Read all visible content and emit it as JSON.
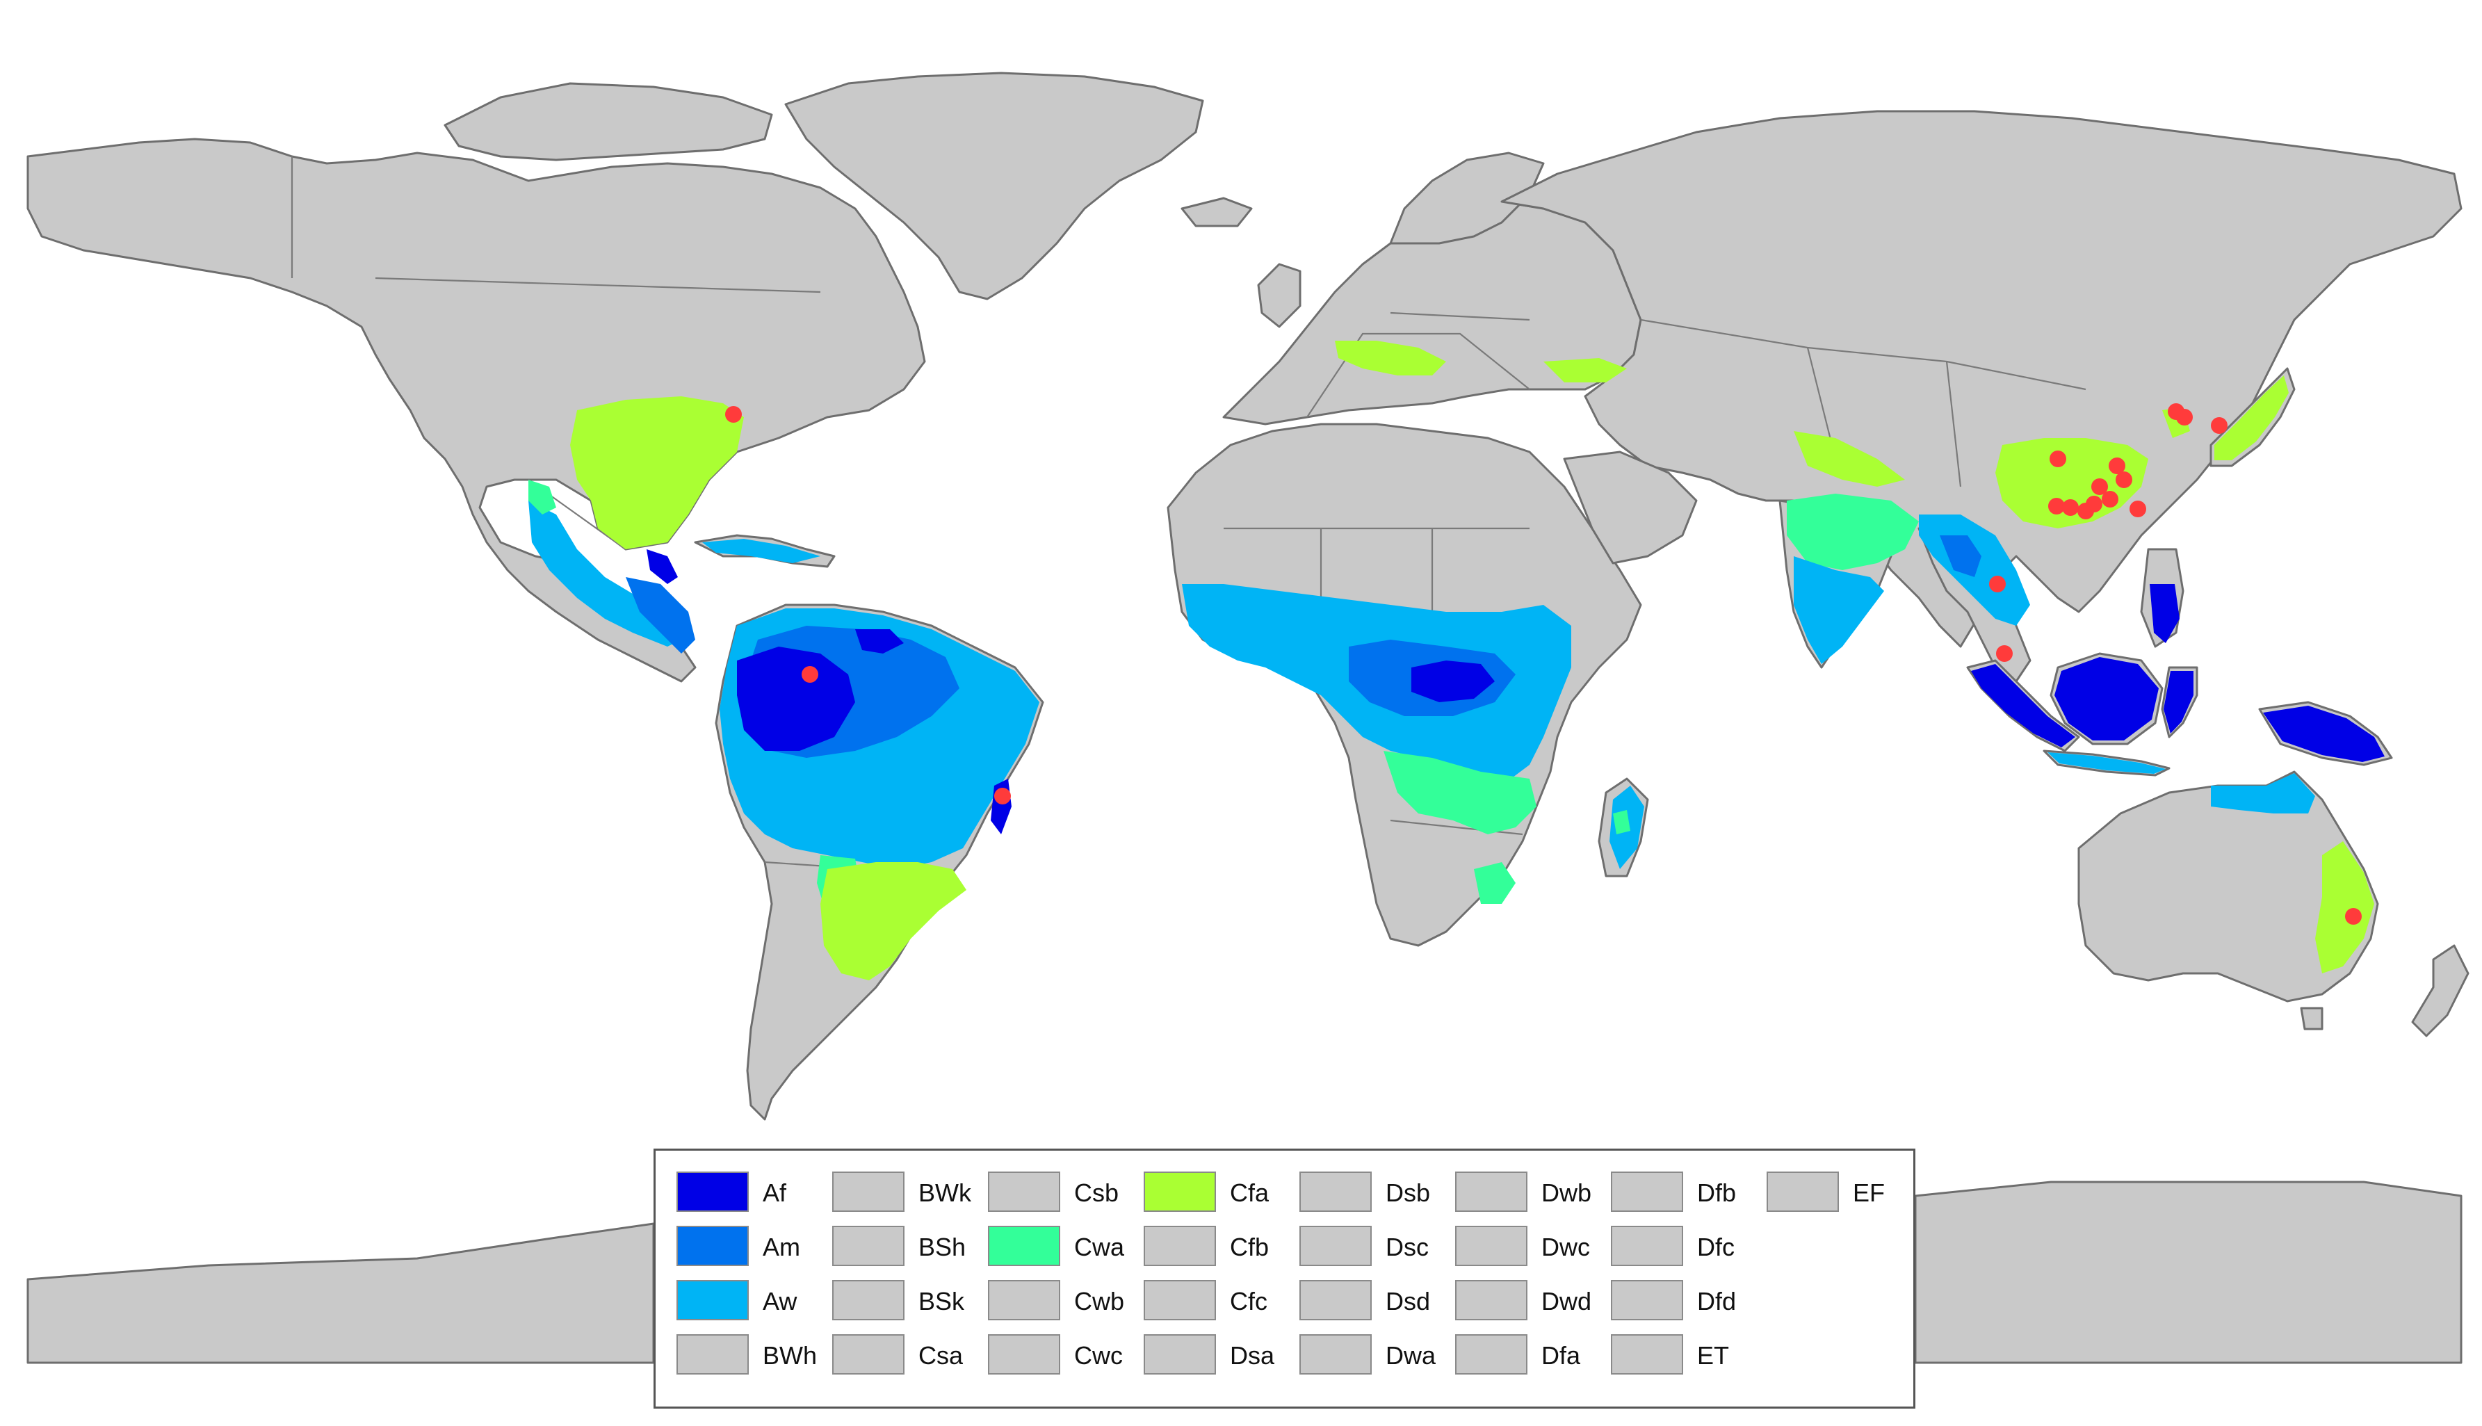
{
  "map": {
    "land_color": "#c9c9c9",
    "border_color": "#6e6e6e",
    "ocean_color": "#ffffff",
    "site_marker_color": "#ff3b3b"
  },
  "legend": {
    "columns": [
      [
        {
          "code": "Af",
          "color": "#0000e6"
        },
        {
          "code": "Am",
          "color": "#0072ee"
        },
        {
          "code": "Aw",
          "color": "#00b4f5"
        },
        {
          "code": "BWh",
          "color": "#c9c9c9"
        }
      ],
      [
        {
          "code": "BWk",
          "color": "#c9c9c9"
        },
        {
          "code": "BSh",
          "color": "#c9c9c9"
        },
        {
          "code": "BSk",
          "color": "#c9c9c9"
        },
        {
          "code": "Csa",
          "color": "#c9c9c9"
        }
      ],
      [
        {
          "code": "Csb",
          "color": "#c9c9c9"
        },
        {
          "code": "Cwa",
          "color": "#33ff99"
        },
        {
          "code": "Cwb",
          "color": "#c9c9c9"
        },
        {
          "code": "Cwc",
          "color": "#c9c9c9"
        }
      ],
      [
        {
          "code": "Cfa",
          "color": "#aaff33"
        },
        {
          "code": "Cfb",
          "color": "#c9c9c9"
        },
        {
          "code": "Cfc",
          "color": "#c9c9c9"
        },
        {
          "code": "Dsa",
          "color": "#c9c9c9"
        }
      ],
      [
        {
          "code": "Dsb",
          "color": "#c9c9c9"
        },
        {
          "code": "Dsc",
          "color": "#c9c9c9"
        },
        {
          "code": "Dsd",
          "color": "#c9c9c9"
        },
        {
          "code": "Dwa",
          "color": "#c9c9c9"
        }
      ],
      [
        {
          "code": "Dwb",
          "color": "#c9c9c9"
        },
        {
          "code": "Dwc",
          "color": "#c9c9c9"
        },
        {
          "code": "Dwd",
          "color": "#c9c9c9"
        },
        {
          "code": "Dfa",
          "color": "#c9c9c9"
        }
      ],
      [
        {
          "code": "Dfb",
          "color": "#c9c9c9"
        },
        {
          "code": "Dfc",
          "color": "#c9c9c9"
        },
        {
          "code": "Dfd",
          "color": "#c9c9c9"
        },
        {
          "code": "ET",
          "color": "#c9c9c9"
        }
      ],
      [
        {
          "code": "EF",
          "color": "#c9c9c9"
        }
      ]
    ]
  }
}
